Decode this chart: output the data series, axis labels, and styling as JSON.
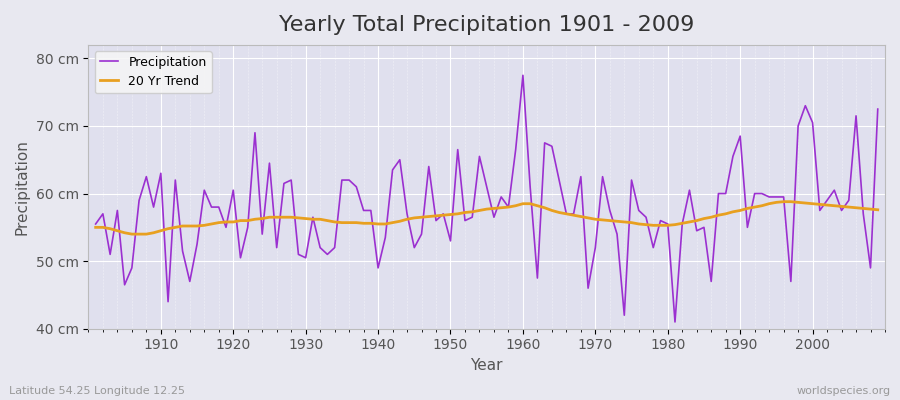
{
  "title": "Yearly Total Precipitation 1901 - 2009",
  "xlabel": "Year",
  "ylabel": "Precipitation",
  "subtitle": "Latitude 54.25 Longitude 12.25",
  "watermark": "worldspecies.org",
  "years": [
    1901,
    1902,
    1903,
    1904,
    1905,
    1906,
    1907,
    1908,
    1909,
    1910,
    1911,
    1912,
    1913,
    1914,
    1915,
    1916,
    1917,
    1918,
    1919,
    1920,
    1921,
    1922,
    1923,
    1924,
    1925,
    1926,
    1927,
    1928,
    1929,
    1930,
    1931,
    1932,
    1933,
    1934,
    1935,
    1936,
    1937,
    1938,
    1939,
    1940,
    1941,
    1942,
    1943,
    1944,
    1945,
    1946,
    1947,
    1948,
    1949,
    1950,
    1951,
    1952,
    1953,
    1954,
    1955,
    1956,
    1957,
    1958,
    1959,
    1960,
    1961,
    1962,
    1963,
    1964,
    1965,
    1966,
    1967,
    1968,
    1969,
    1970,
    1971,
    1972,
    1973,
    1974,
    1975,
    1976,
    1977,
    1978,
    1979,
    1980,
    1981,
    1982,
    1983,
    1984,
    1985,
    1986,
    1987,
    1988,
    1989,
    1990,
    1991,
    1992,
    1993,
    1994,
    1995,
    1996,
    1997,
    1998,
    1999,
    2000,
    2001,
    2002,
    2003,
    2004,
    2005,
    2006,
    2007,
    2008,
    2009
  ],
  "precipitation": [
    55.5,
    57.0,
    51.0,
    57.5,
    46.5,
    49.0,
    59.0,
    62.5,
    58.0,
    63.0,
    44.0,
    62.0,
    51.5,
    47.0,
    52.5,
    60.5,
    58.0,
    58.0,
    55.0,
    60.5,
    50.5,
    55.0,
    69.0,
    54.0,
    64.5,
    52.0,
    61.5,
    62.0,
    51.0,
    50.5,
    56.5,
    52.0,
    51.0,
    52.0,
    62.0,
    62.0,
    61.0,
    57.5,
    57.5,
    49.0,
    53.5,
    63.5,
    65.0,
    57.0,
    52.0,
    54.0,
    64.0,
    56.0,
    57.0,
    53.0,
    66.5,
    56.0,
    56.5,
    65.5,
    61.0,
    56.5,
    59.5,
    58.0,
    66.5,
    77.5,
    61.0,
    47.5,
    67.5,
    67.0,
    62.0,
    57.0,
    57.0,
    62.5,
    46.0,
    52.0,
    62.5,
    57.5,
    54.0,
    42.0,
    62.0,
    57.5,
    56.5,
    52.0,
    56.0,
    55.5,
    41.0,
    55.5,
    60.5,
    54.5,
    55.0,
    47.0,
    60.0,
    60.0,
    65.5,
    68.5,
    55.0,
    60.0,
    60.0,
    59.5,
    59.5,
    59.5,
    47.0,
    70.0,
    73.0,
    70.5,
    57.5,
    59.0,
    60.5,
    57.5,
    59.0,
    71.5,
    57.0,
    49.0,
    72.5
  ],
  "trend": [
    55.0,
    55.0,
    54.8,
    54.5,
    54.2,
    54.0,
    54.0,
    54.0,
    54.2,
    54.5,
    54.8,
    55.0,
    55.2,
    55.2,
    55.2,
    55.3,
    55.5,
    55.7,
    55.8,
    55.8,
    56.0,
    56.0,
    56.2,
    56.3,
    56.5,
    56.5,
    56.5,
    56.5,
    56.4,
    56.3,
    56.2,
    56.2,
    56.0,
    55.8,
    55.7,
    55.7,
    55.7,
    55.6,
    55.6,
    55.5,
    55.5,
    55.7,
    55.9,
    56.2,
    56.4,
    56.5,
    56.6,
    56.7,
    56.8,
    56.9,
    57.0,
    57.2,
    57.3,
    57.5,
    57.7,
    57.8,
    57.9,
    58.0,
    58.2,
    58.5,
    58.5,
    58.2,
    57.9,
    57.5,
    57.2,
    57.0,
    56.8,
    56.6,
    56.4,
    56.2,
    56.1,
    56.0,
    55.9,
    55.8,
    55.7,
    55.5,
    55.4,
    55.3,
    55.3,
    55.3,
    55.4,
    55.6,
    55.8,
    56.0,
    56.3,
    56.5,
    56.8,
    57.0,
    57.3,
    57.5,
    57.8,
    58.0,
    58.2,
    58.5,
    58.7,
    58.8,
    58.8,
    58.7,
    58.6,
    58.5,
    58.4,
    58.3,
    58.2,
    58.1,
    58.0,
    57.9,
    57.8,
    57.7,
    57.6
  ],
  "precip_color": "#9b30d0",
  "trend_color": "#e8a020",
  "bg_color": "#e8e8f0",
  "plot_bg_color": "#e0e0ee",
  "grid_color": "#ffffff",
  "ylim": [
    40,
    82
  ],
  "xlim": [
    1900,
    2010
  ],
  "yticks": [
    40,
    50,
    60,
    70,
    80
  ],
  "ytick_labels": [
    "40 cm",
    "50 cm",
    "60 cm",
    "70 cm",
    "80 cm"
  ],
  "xticks": [
    1910,
    1920,
    1930,
    1940,
    1950,
    1960,
    1970,
    1980,
    1990,
    2000
  ],
  "title_fontsize": 16,
  "label_fontsize": 11,
  "tick_fontsize": 10,
  "legend_labels": [
    "Precipitation",
    "20 Yr Trend"
  ]
}
